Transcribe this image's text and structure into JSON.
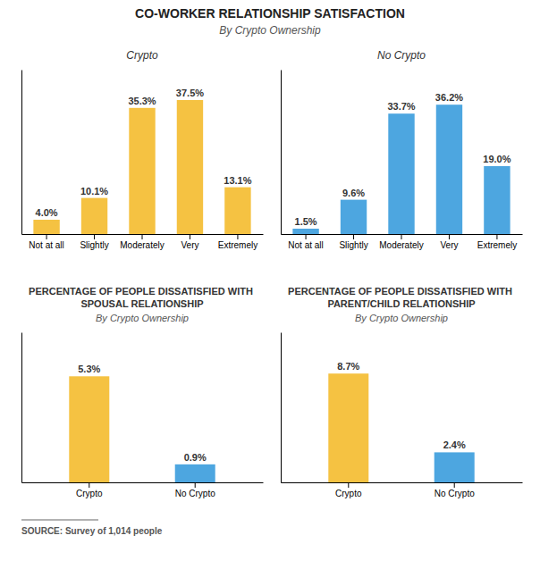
{
  "title": "CO-WORKER RELATIONSHIP SATISFACTION",
  "subtitle": "By Crypto Ownership",
  "annotations": [
    "SOURCE: Survey of 1,014 people"
  ],
  "chart_data": [
    {
      "type": "bar",
      "title": "Crypto",
      "categories": [
        "Not at all",
        "Slightly",
        "Moderately",
        "Very",
        "Extremely"
      ],
      "values": [
        4.0,
        10.1,
        35.3,
        37.5,
        13.1
      ],
      "value_labels": [
        "4.0%",
        "10.1%",
        "35.3%",
        "37.5%",
        "13.1%"
      ],
      "data_labels": true,
      "color": "#F5C242",
      "ylim": [
        0,
        46
      ],
      "tick_labels": "x"
    },
    {
      "type": "bar",
      "title": "No Crypto",
      "categories": [
        "Not at all",
        "Slightly",
        "Moderately",
        "Very",
        "Extremely"
      ],
      "values": [
        1.5,
        9.6,
        33.7,
        36.2,
        19.0
      ],
      "value_labels": [
        "1.5%",
        "9.6%",
        "33.7%",
        "36.2%",
        "19.0%"
      ],
      "data_labels": true,
      "color": "#4DA6E0",
      "ylim": [
        0,
        46
      ],
      "tick_labels": "x"
    },
    {
      "type": "bar",
      "title": "PERCENTAGE OF PEOPLE DISSATISFIED WITH SPOUSAL RELATIONSHIP",
      "subtitle": "By Crypto Ownership",
      "categories": [
        "Crypto",
        "No Crypto"
      ],
      "values": [
        5.3,
        0.9
      ],
      "value_labels": [
        "5.3%",
        "0.9%"
      ],
      "data_labels": true,
      "colors": [
        "#F5C242",
        "#4DA6E0"
      ],
      "ylim": [
        0,
        7.5
      ],
      "tick_labels": "x"
    },
    {
      "type": "bar",
      "title": "PERCENTAGE OF PEOPLE DISSATISFIED WITH PARENT/CHILD RELATIONSHIP",
      "subtitle": "By Crypto Ownership",
      "categories": [
        "Crypto",
        "No Crypto"
      ],
      "values": [
        8.7,
        2.4
      ],
      "value_labels": [
        "8.7%",
        "2.4%"
      ],
      "data_labels": true,
      "colors": [
        "#F5C242",
        "#4DA6E0"
      ],
      "ylim": [
        0,
        12
      ],
      "tick_labels": "x"
    }
  ]
}
